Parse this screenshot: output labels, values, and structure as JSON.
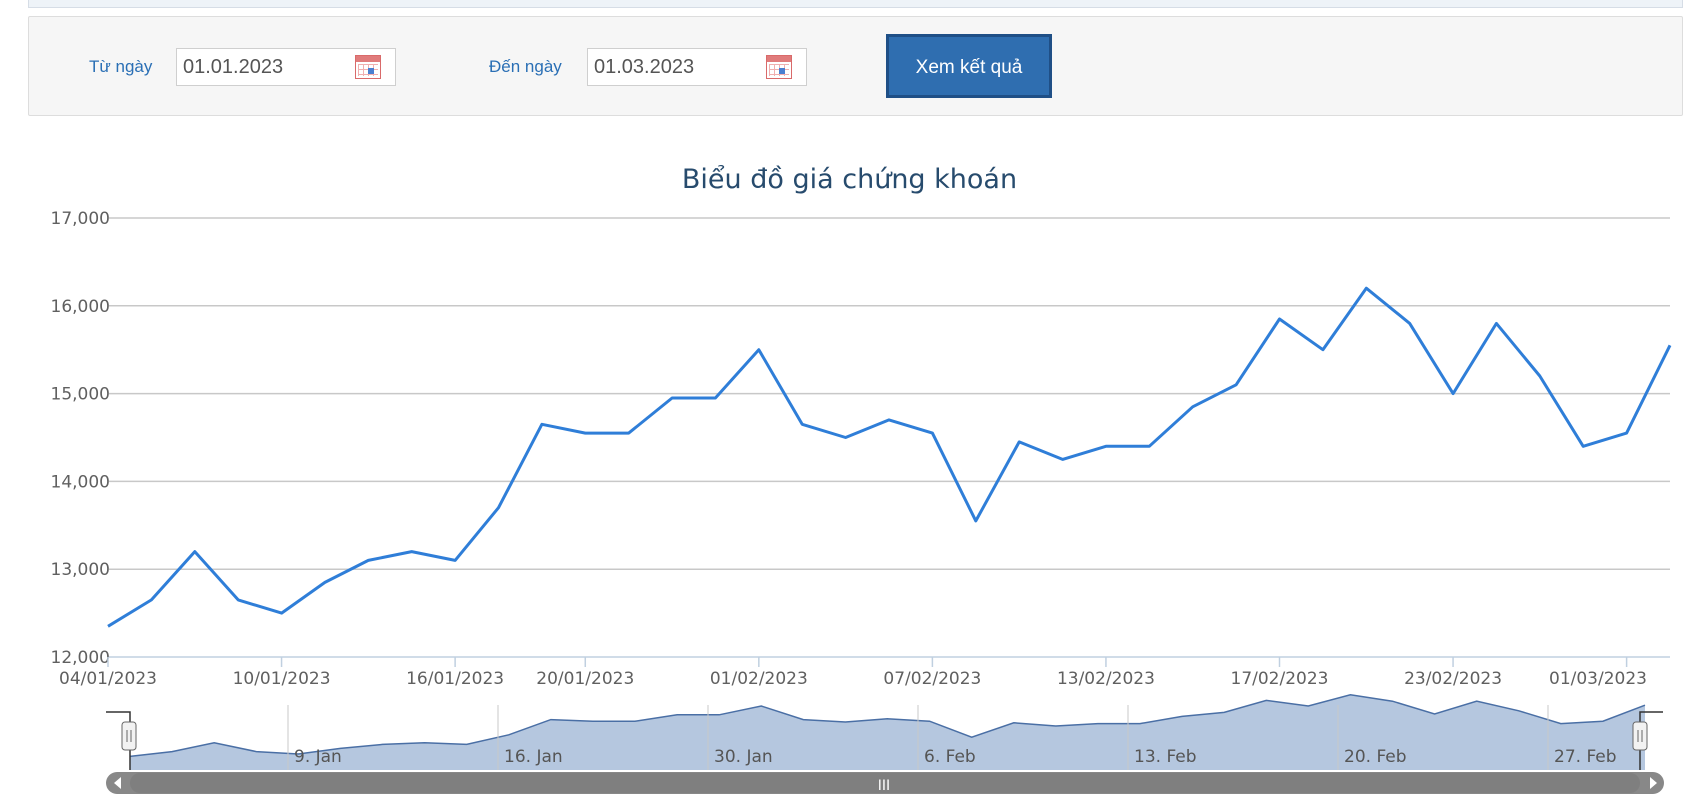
{
  "filter": {
    "from_label": "Từ ngày",
    "from_value": "01.01.2023",
    "to_label": "Đến ngày",
    "to_value": "01.03.2023",
    "submit_label": "Xem kết quả",
    "calendar_icon": "calendar-icon"
  },
  "colors": {
    "line": "#2f7ed8",
    "navigator_fill": "#b5c7df",
    "navigator_line": "#4a6fa5",
    "button": "#2f6eb0",
    "label": "#2a6fb5"
  },
  "chart_data": {
    "type": "line",
    "title": "Biểu đồ giá chứng khoán",
    "ylim": [
      12000,
      17000
    ],
    "yticks": [
      "12,000",
      "13,000",
      "14,000",
      "15,000",
      "16,000",
      "17,000"
    ],
    "ytick_values": [
      12000,
      13000,
      14000,
      15000,
      16000,
      17000
    ],
    "xtick_labels": [
      "04/01/2023",
      "10/01/2023",
      "16/01/2023",
      "20/01/2023",
      "01/02/2023",
      "07/02/2023",
      "13/02/2023",
      "17/02/2023",
      "23/02/2023",
      "01/03/2023"
    ],
    "xtick_indices": [
      0,
      4,
      8,
      11,
      15,
      19,
      23,
      27,
      31,
      35
    ],
    "grid": true,
    "series": [
      {
        "values": [
          12350,
          12650,
          13200,
          12650,
          12500,
          12850,
          13100,
          13200,
          13100,
          13700,
          14650,
          14550,
          14550,
          14950,
          14950,
          15500,
          14650,
          14500,
          14700,
          14550,
          13550,
          14450,
          14250,
          14400,
          14400,
          14850,
          15100,
          15850,
          15500,
          16200,
          15800,
          15000,
          15800,
          15200,
          14400,
          14550,
          15550
        ]
      }
    ],
    "navigator": {
      "labels": [
        "9. Jan",
        "16. Jan",
        "30. Jan",
        "6. Feb",
        "13. Feb",
        "20. Feb",
        "27. Feb"
      ],
      "scrollbar_icon": "grip-icon",
      "left_arrow": "left-arrow-icon",
      "right_arrow": "right-arrow-icon"
    }
  }
}
